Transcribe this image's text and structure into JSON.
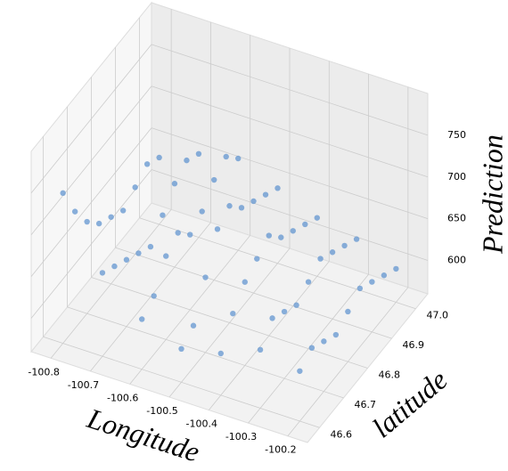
{
  "chart_data": {
    "type": "scatter3d",
    "xlabel": "Longitude",
    "ylabel": "latitude",
    "zlabel": "Prediction",
    "color": "#6b9bd2",
    "xlim": [
      -100.85,
      -100.15
    ],
    "ylim": [
      46.55,
      47.05
    ],
    "zlim": [
      560,
      800
    ],
    "xticks": [
      -100.8,
      -100.7,
      -100.6,
      -100.5,
      -100.4,
      -100.3,
      -100.2
    ],
    "yticks": [
      46.6,
      46.7,
      46.8,
      46.9,
      {
        "value": 47.0,
        "label": "47.0"
      }
    ],
    "zticks": [
      600,
      650,
      700,
      750
    ],
    "grid": true,
    "x": [
      -100.8,
      -100.7,
      -100.6,
      -100.5,
      -100.4,
      -100.3,
      -100.2,
      -100.8,
      -100.7,
      -100.6,
      -100.5,
      -100.4,
      -100.3,
      -100.2,
      -100.8,
      -100.7,
      -100.6,
      -100.5,
      -100.4,
      -100.3,
      -100.2,
      -100.8,
      -100.7,
      -100.6,
      -100.5,
      -100.4,
      -100.3,
      -100.2,
      -100.8,
      -100.7,
      -100.6,
      -100.5,
      -100.4,
      -100.3,
      -100.2,
      -100.8,
      -100.7,
      -100.6,
      -100.5,
      -100.4,
      -100.3,
      -100.2,
      -100.8,
      -100.7,
      -100.6,
      -100.5,
      -100.4,
      -100.3,
      -100.2,
      -100.8,
      -100.7,
      -100.6,
      -100.5,
      -100.4,
      -100.3,
      -100.2,
      -100.8,
      -100.7,
      -100.6,
      -100.5,
      -100.4,
      -100.3,
      -100.2
    ],
    "y": [
      46.6,
      46.6,
      46.6,
      46.6,
      46.6,
      46.6,
      46.6,
      46.65,
      46.65,
      46.65,
      46.65,
      46.65,
      46.65,
      46.65,
      46.7,
      46.7,
      46.7,
      46.7,
      46.7,
      46.7,
      46.7,
      46.75,
      46.75,
      46.75,
      46.75,
      46.75,
      46.75,
      46.75,
      46.8,
      46.8,
      46.8,
      46.8,
      46.8,
      46.8,
      46.8,
      46.85,
      46.85,
      46.85,
      46.85,
      46.85,
      46.85,
      46.85,
      46.9,
      46.9,
      46.9,
      46.9,
      46.9,
      46.9,
      46.9,
      46.95,
      46.95,
      46.95,
      46.95,
      46.95,
      46.95,
      46.95,
      47.0,
      47.0,
      47.0,
      47.0,
      47.0,
      47.0,
      47.0
    ],
    "z": [
      740,
      660,
      620,
      600,
      610,
      630,
      620,
      700,
      650,
      630,
      610,
      640,
      650,
      630,
      670,
      640,
      660,
      650,
      660,
      640,
      620,
      650,
      630,
      670,
      690,
      670,
      630,
      610,
      640,
      620,
      650,
      700,
      680,
      640,
      620,
      630,
      640,
      660,
      680,
      660,
      650,
      630,
      640,
      660,
      680,
      670,
      650,
      640,
      620,
      650,
      670,
      690,
      660,
      640,
      630,
      610,
      640,
      660,
      670,
      650,
      630,
      620,
      600
    ]
  }
}
